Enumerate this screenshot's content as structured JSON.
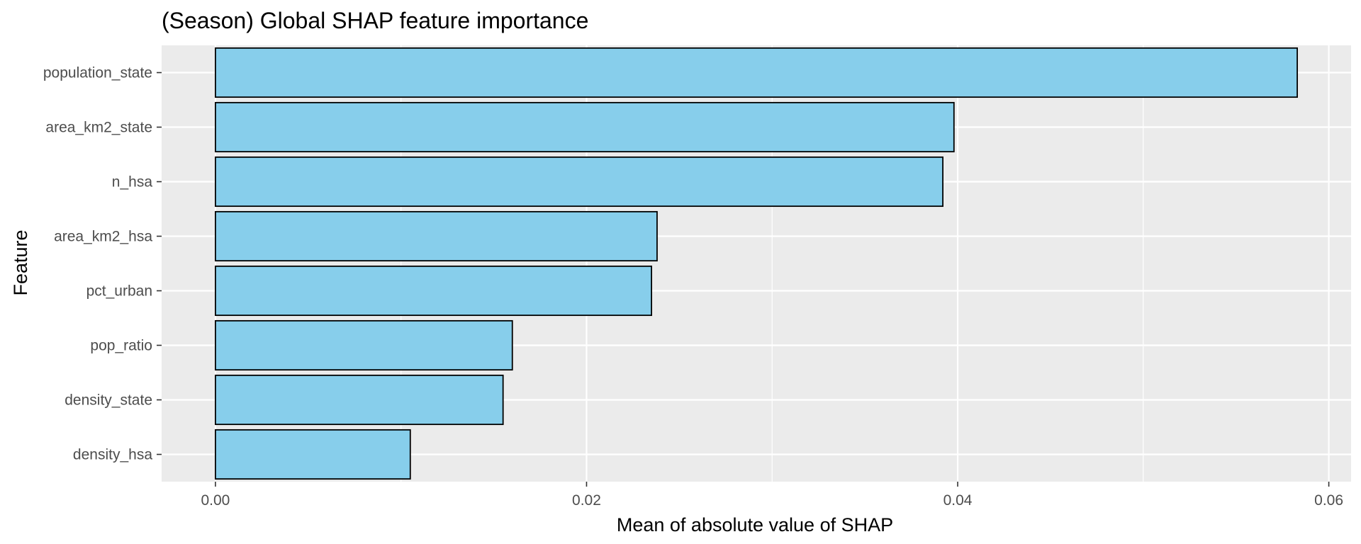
{
  "chart_data": {
    "type": "bar",
    "orientation": "horizontal",
    "title": "(Season) Global SHAP feature importance",
    "xlabel": "Mean of absolute value of SHAP",
    "ylabel": "Feature",
    "categories": [
      "population_state",
      "area_km2_state",
      "n_hsa",
      "area_km2_hsa",
      "pct_urban",
      "pop_ratio",
      "density_state",
      "density_hsa"
    ],
    "values": [
      0.0583,
      0.0398,
      0.0392,
      0.0238,
      0.0235,
      0.016,
      0.0155,
      0.0105
    ],
    "xlim": [
      -0.0029,
      0.0612
    ],
    "xticks": [
      0,
      0.02,
      0.04,
      0.06
    ],
    "xtick_labels": [
      "0.00",
      "0.02",
      "0.04",
      "0.06"
    ],
    "grid": true,
    "colors": {
      "bar_fill": "#87CEEB",
      "bar_stroke": "#000000",
      "panel_background": "#EBEBEB",
      "grid_line": "#FFFFFF"
    }
  }
}
